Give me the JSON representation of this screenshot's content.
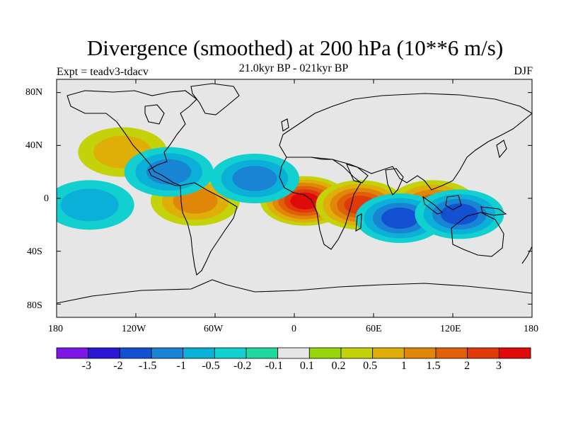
{
  "title": "Divergence (smoothed) at 200 hPa (10**6 m/s)",
  "experiment_label": "Expt = teadv3-tdacv",
  "period_label": "21.0kyr BP - 021kyr BP",
  "season_label": "DJF",
  "lat_labels": [
    "80N",
    "40N",
    "0",
    "40S",
    "80S"
  ],
  "lon_labels": [
    "180",
    "120W",
    "60W",
    "0",
    "60E",
    "120E",
    "180"
  ],
  "colorbar": {
    "colors": [
      "#7b16e4",
      "#2a18d6",
      "#1450d2",
      "#1a84d4",
      "#0ab0d8",
      "#12cfd0",
      "#20d8a0",
      "#e6e6e6",
      "#96d60a",
      "#c4d20a",
      "#dfae08",
      "#e0870a",
      "#e0600a",
      "#e03a0a",
      "#e00a0a"
    ],
    "labels": [
      "-3",
      "-2",
      "-1.5",
      "-1",
      "-0.5",
      "-0.2",
      "-0.1",
      "0.1",
      "0.2",
      "0.5",
      "1",
      "1.5",
      "2",
      "3"
    ]
  },
  "chart_data": {
    "type": "contour-map",
    "variable": "Divergence (smoothed) at 200 hPa",
    "units": "10**6 m/s",
    "lon_range": [
      -180,
      180
    ],
    "lat_range": [
      -90,
      90
    ],
    "background_class": "-0.1 to 0.1",
    "features": [
      {
        "lon": 8,
        "lat": -2,
        "value": 3,
        "desc": "strongest positive: tropical Atlantic / Gulf of Guinea"
      },
      {
        "lon": 50,
        "lat": -5,
        "value": 2,
        "desc": "positive: western Indian Ocean"
      },
      {
        "lon": 105,
        "lat": -5,
        "value": 1.5,
        "desc": "positive: Maritime Continent"
      },
      {
        "lon": -75,
        "lat": -2,
        "value": 1,
        "desc": "positive: Amazon / northern South America"
      },
      {
        "lon": -130,
        "lat": 35,
        "value": 0.5,
        "desc": "positive: NE Pacific"
      },
      {
        "lon": 80,
        "lat": -15,
        "value": -1.5,
        "desc": "negative: central Indian Ocean"
      },
      {
        "lon": 125,
        "lat": -12,
        "value": -1.5,
        "desc": "negative: Indonesia / N Australia"
      },
      {
        "lon": -30,
        "lat": 15,
        "value": -1,
        "desc": "negative: tropical N Atlantic"
      },
      {
        "lon": -95,
        "lat": 20,
        "value": -1,
        "desc": "negative: Central America"
      },
      {
        "lon": -155,
        "lat": -5,
        "value": -0.5,
        "desc": "negative: central Pacific"
      }
    ]
  }
}
